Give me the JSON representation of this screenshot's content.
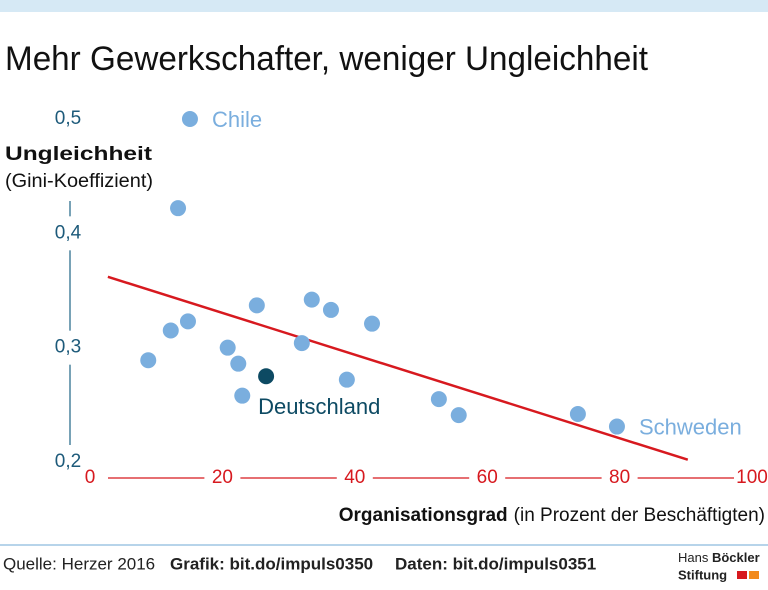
{
  "chart_data": {
    "type": "scatter",
    "title": "Mehr Gewerkschafter, weniger Ungleichheit",
    "y_label": {
      "main": "Ungleichheit",
      "sub": "(Gini-Koeffizient)"
    },
    "x_label": {
      "main": "Organisationsgrad",
      "sub": "(in Prozent der Beschäftigten)"
    },
    "x": [
      15.1,
      13.3,
      8.8,
      12.2,
      14.8,
      20.8,
      22.4,
      23.0,
      25.2,
      26.6,
      32.0,
      33.5,
      36.4,
      38.8,
      42.6,
      52.7,
      55.7,
      73.7,
      79.6
    ],
    "values": [
      0.5,
      0.422,
      0.289,
      0.315,
      0.323,
      0.3,
      0.286,
      0.258,
      0.337,
      0.275,
      0.304,
      0.342,
      0.333,
      0.272,
      0.321,
      0.255,
      0.241,
      0.242,
      0.231
    ],
    "point_labels": [
      "Chile",
      null,
      null,
      null,
      null,
      null,
      null,
      null,
      null,
      "Deutschland",
      null,
      null,
      null,
      null,
      null,
      null,
      null,
      null,
      "Schweden"
    ],
    "point_colors": [
      "#7aaede",
      "#7aaede",
      "#7aaede",
      "#7aaede",
      "#7aaede",
      "#7aaede",
      "#7aaede",
      "#7aaede",
      "#7aaede",
      "#0d4a63",
      "#7aaede",
      "#7aaede",
      "#7aaede",
      "#7aaede",
      "#7aaede",
      "#7aaede",
      "#7aaede",
      "#7aaede",
      "#7aaede"
    ],
    "trendline": {
      "x": [
        2.7,
        90.3
      ],
      "values": [
        0.362,
        0.202
      ],
      "color": "#d7191f"
    },
    "xlim": [
      0,
      100
    ],
    "xticks": [
      0,
      20,
      40,
      60,
      80,
      100
    ],
    "ylim": [
      0.2,
      0.5
    ],
    "yticks": [
      {
        "value": 0.2,
        "label": "0,2"
      },
      {
        "value": 0.3,
        "label": "0,3"
      },
      {
        "value": 0.4,
        "label": "0,4"
      },
      {
        "value": 0.5,
        "label": "0,5"
      }
    ],
    "x_axis_color": "#d7191f",
    "y_axis_color": "#2f6f8f"
  },
  "footer": {
    "source": "Quelle: Herzer 2016",
    "graphic": "Grafik: bit.do/impuls0350",
    "data": "Daten: bit.do/impuls0351",
    "logo": {
      "line1_a": "Hans ",
      "line1_b": "Böckler",
      "line2": "Stiftung"
    }
  }
}
